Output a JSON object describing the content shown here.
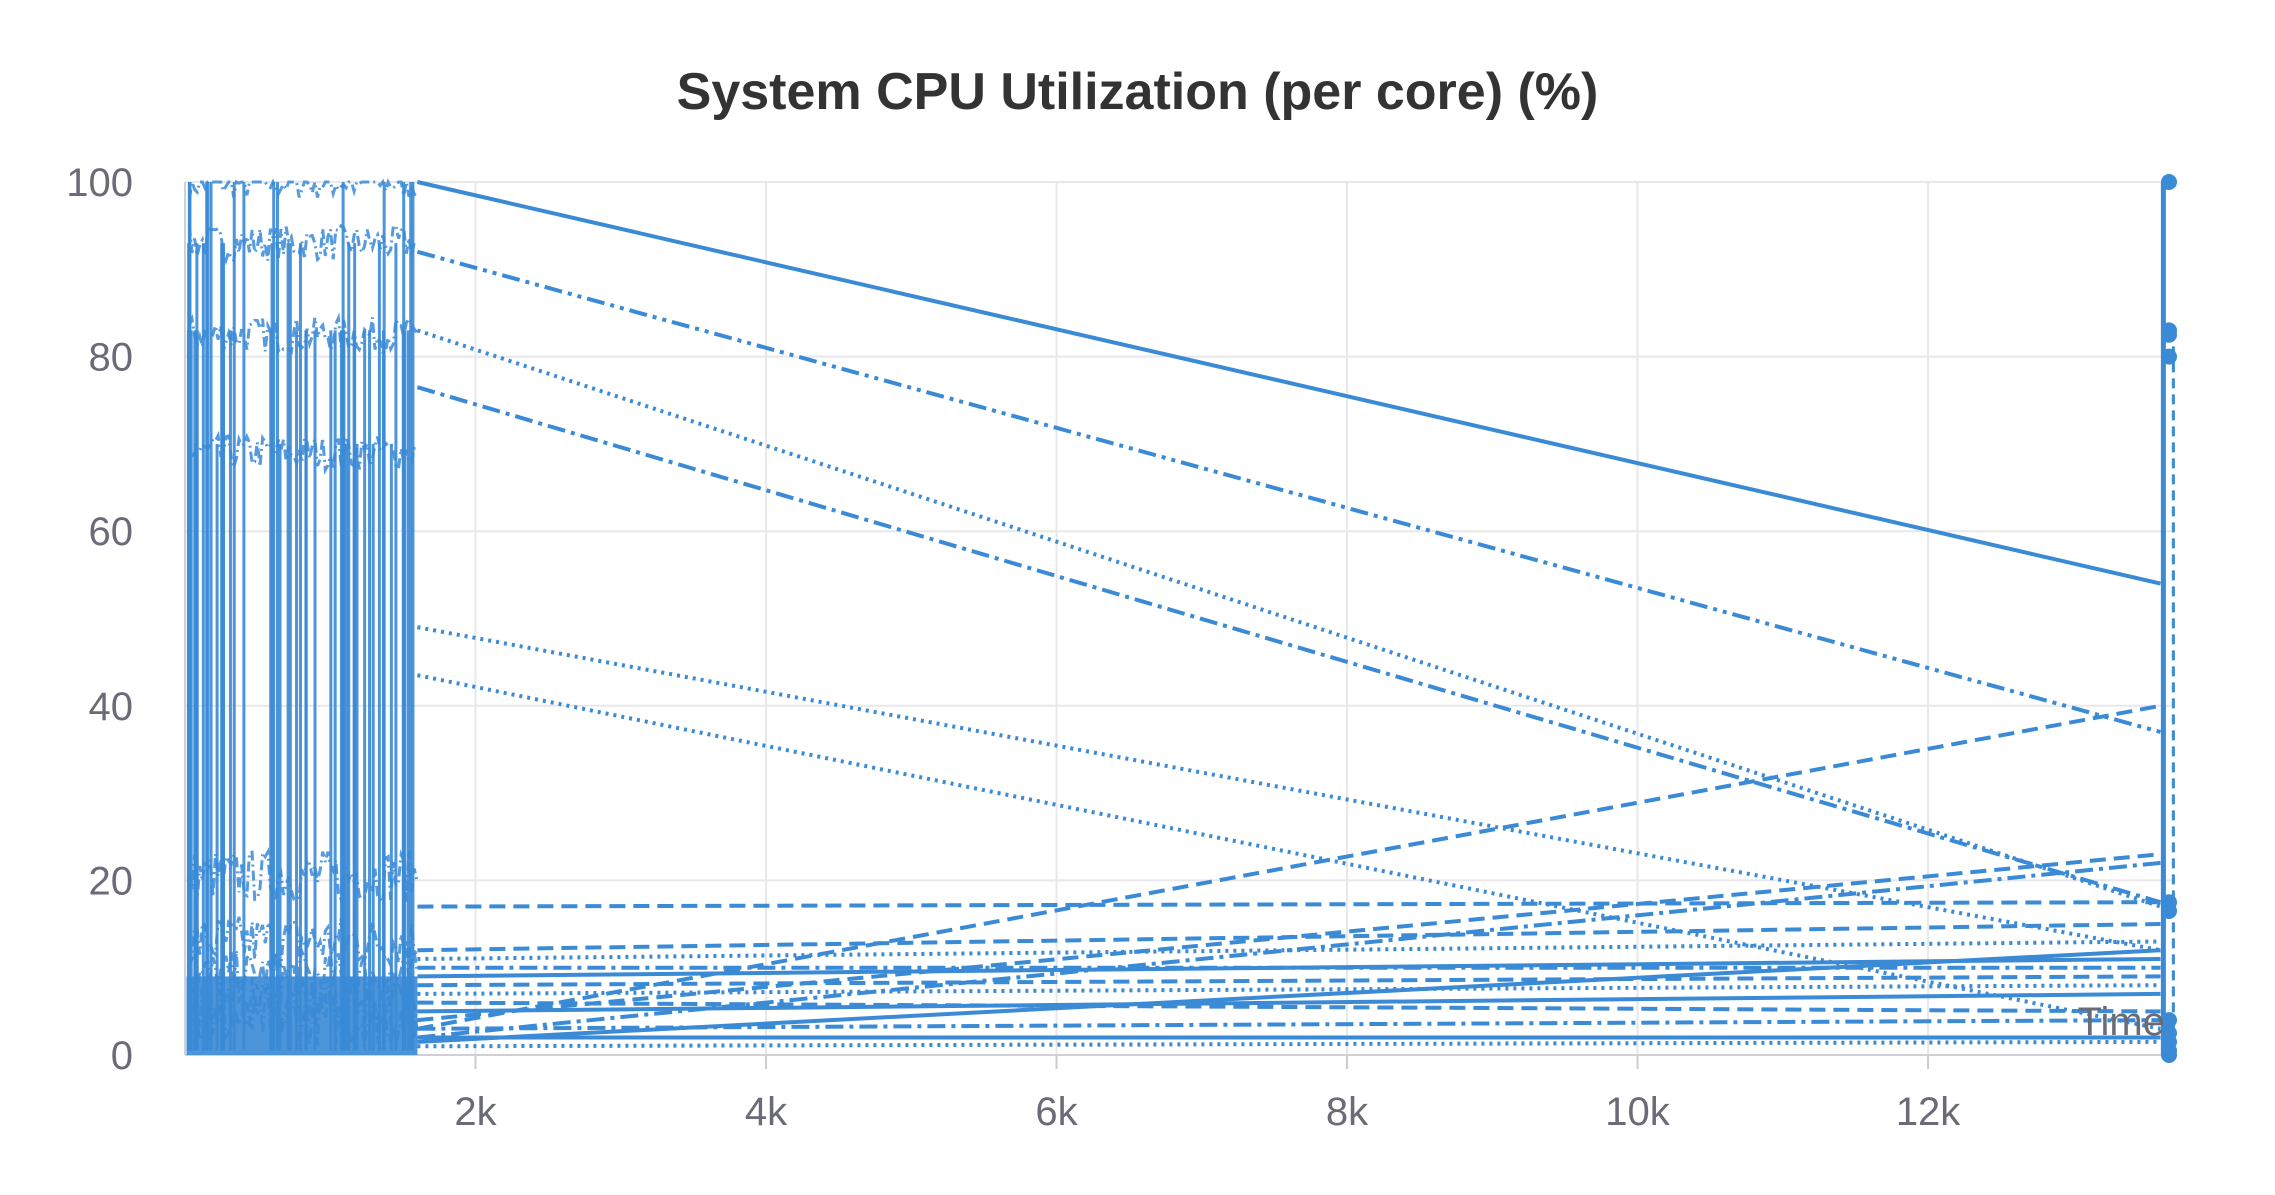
{
  "chart_data": {
    "type": "line",
    "title": "System CPU Utilization (per core) (%)",
    "xlabel": "Time",
    "ylabel": "",
    "xlim": [
      0,
      13700
    ],
    "ylim": [
      0,
      100
    ],
    "xticks": [
      2000,
      4000,
      6000,
      8000,
      10000,
      12000
    ],
    "xtick_labels": [
      "2k",
      "4k",
      "6k",
      "8k",
      "10k",
      "12k"
    ],
    "yticks": [
      0,
      20,
      40,
      60,
      80,
      100
    ],
    "ytick_labels": [
      "0",
      "20",
      "40",
      "60",
      "80",
      "100"
    ],
    "grid": true,
    "line_color": "#3a8ad6",
    "series": [
      {
        "style": "solid",
        "x": [
          1600,
          13600
        ],
        "y": [
          100,
          54
        ]
      },
      {
        "style": "dashdotdot",
        "x": [
          1600,
          13600
        ],
        "y": [
          92,
          37
        ]
      },
      {
        "style": "dotted",
        "x": [
          1600,
          13600
        ],
        "y": [
          83,
          17
        ]
      },
      {
        "style": "dashdot",
        "x": [
          1600,
          13600
        ],
        "y": [
          76.5,
          17.5
        ]
      },
      {
        "style": "dotted",
        "x": [
          1600,
          13600
        ],
        "y": [
          49,
          12
        ]
      },
      {
        "style": "dotted",
        "x": [
          1600,
          13600
        ],
        "y": [
          43.5,
          3
        ]
      },
      {
        "style": "dashed",
        "x": [
          1600,
          13600
        ],
        "y": [
          17,
          17.5
        ]
      },
      {
        "style": "dashed",
        "x": [
          1600,
          13600
        ],
        "y": [
          3,
          40
        ]
      },
      {
        "style": "dashed",
        "x": [
          1600,
          13600
        ],
        "y": [
          4,
          23
        ]
      },
      {
        "style": "dashdot",
        "x": [
          1600,
          13600
        ],
        "y": [
          2,
          22
        ]
      },
      {
        "style": "dashed",
        "x": [
          1600,
          13600
        ],
        "y": [
          12,
          15
        ]
      },
      {
        "style": "dotted",
        "x": [
          1600,
          13600
        ],
        "y": [
          11,
          13
        ]
      },
      {
        "style": "solid",
        "x": [
          1600,
          13600
        ],
        "y": [
          1.5,
          12
        ]
      },
      {
        "style": "dashdot",
        "x": [
          1600,
          13600
        ],
        "y": [
          10,
          10
        ]
      },
      {
        "style": "solid",
        "x": [
          1600,
          13600
        ],
        "y": [
          9,
          11
        ]
      },
      {
        "style": "dashed",
        "x": [
          1600,
          13600
        ],
        "y": [
          8,
          9
        ]
      },
      {
        "style": "dotted",
        "x": [
          1600,
          13600
        ],
        "y": [
          7,
          8
        ]
      },
      {
        "style": "solid",
        "x": [
          1600,
          13600
        ],
        "y": [
          5,
          7
        ]
      },
      {
        "style": "dashed",
        "x": [
          1600,
          13600
        ],
        "y": [
          6,
          5
        ]
      },
      {
        "style": "dashdot",
        "x": [
          1600,
          13600
        ],
        "y": [
          3,
          4
        ]
      },
      {
        "style": "solid",
        "x": [
          1600,
          13600
        ],
        "y": [
          2,
          2
        ]
      },
      {
        "style": "dotted",
        "x": [
          1600,
          13600
        ],
        "y": [
          1,
          1.5
        ]
      }
    ],
    "end_markers": [
      100,
      83,
      82.5,
      80,
      17.5,
      16.5,
      4,
      2.5,
      1.5,
      0.5,
      0
    ]
  }
}
